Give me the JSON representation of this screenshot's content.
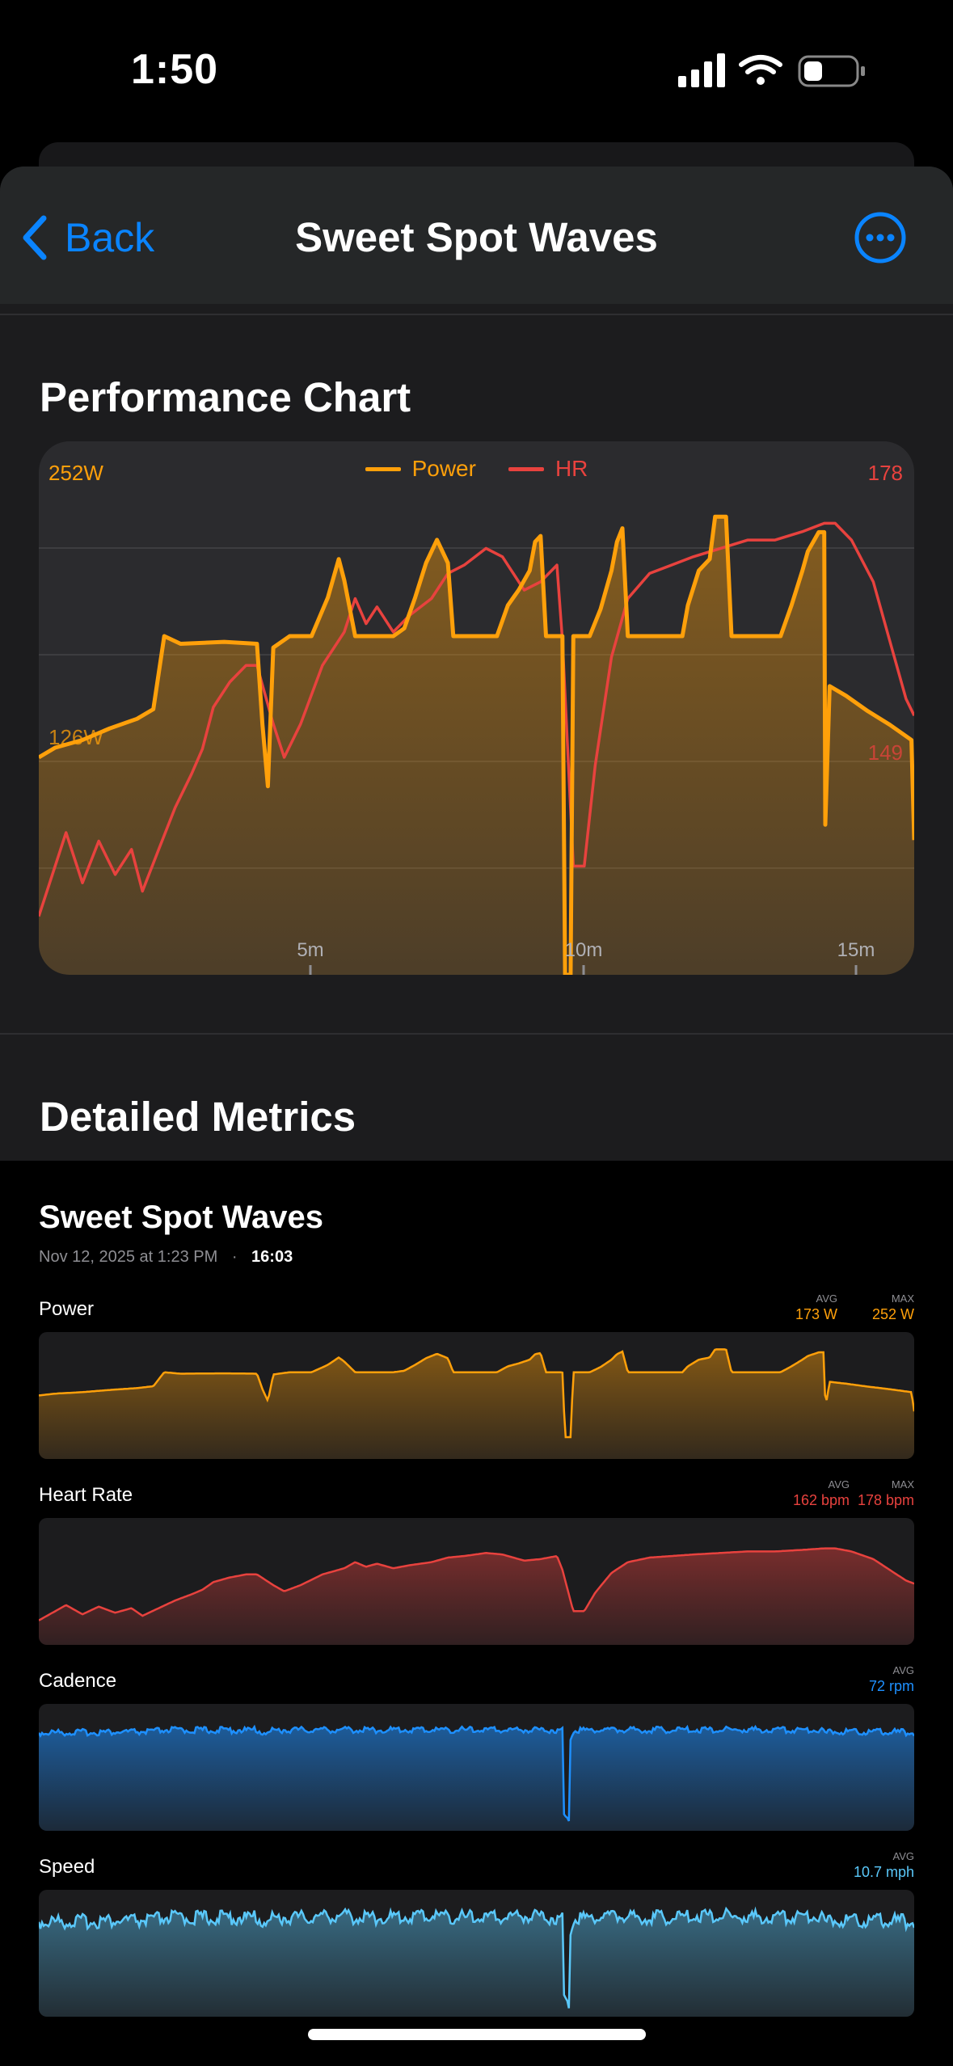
{
  "status_bar": {
    "time": "1:50"
  },
  "nav": {
    "back_label": "Back",
    "title": "Sweet Spot Waves"
  },
  "performance": {
    "section_title": "Performance Chart",
    "legend": [
      {
        "label": "Power",
        "color": "#ffa00a"
      },
      {
        "label": "HR",
        "color": "#e8423e"
      }
    ],
    "power_max_label": "252W",
    "power_mid_label": "126W",
    "hr_max_label": "178",
    "hr_mid_label": "149",
    "x_ticks": [
      "5m",
      "10m",
      "15m"
    ]
  },
  "detailed": {
    "section_title": "Detailed Metrics"
  },
  "workout": {
    "title": "Sweet Spot Waves",
    "date": "Nov 12, 2025 at 1:23 PM",
    "separator": "·",
    "duration": "16:03"
  },
  "metrics": [
    {
      "label": "Power",
      "color": "#ffa00a",
      "stats": [
        {
          "caption": "AVG",
          "value": "173 W"
        },
        {
          "caption": "MAX",
          "value": "252 W"
        }
      ]
    },
    {
      "label": "Heart Rate",
      "color": "#e8423e",
      "stats": [
        {
          "caption": "AVG",
          "value": "162 bpm"
        },
        {
          "caption": "MAX",
          "value": "178 bpm"
        }
      ]
    },
    {
      "label": "Cadence",
      "color": "#1e90ff",
      "stats": [
        {
          "caption": "AVG",
          "value": "72 rpm"
        }
      ]
    },
    {
      "label": "Speed",
      "color": "#5ac8fa",
      "stats": [
        {
          "caption": "AVG",
          "value": "10.7 mph"
        }
      ]
    }
  ],
  "chart_data": {
    "type": "line",
    "x_unit": "minutes",
    "xlim": [
      0,
      16.05
    ],
    "series": [
      {
        "name": "Power",
        "axis": "left",
        "ylim": [
          0,
          252
        ],
        "points": [
          [
            0,
            113
          ],
          [
            0.3,
            118
          ],
          [
            0.8,
            122
          ],
          [
            1.3,
            128
          ],
          [
            1.8,
            133
          ],
          [
            2.1,
            138
          ],
          [
            2.3,
            176
          ],
          [
            2.6,
            172
          ],
          [
            3.4,
            173
          ],
          [
            4.0,
            172
          ],
          [
            4.1,
            130
          ],
          [
            4.2,
            98
          ],
          [
            4.3,
            170
          ],
          [
            4.6,
            176
          ],
          [
            5.0,
            176
          ],
          [
            5.3,
            196
          ],
          [
            5.5,
            216
          ],
          [
            5.6,
            205
          ],
          [
            5.8,
            176
          ],
          [
            6.5,
            176
          ],
          [
            6.7,
            180
          ],
          [
            6.9,
            196
          ],
          [
            7.1,
            214
          ],
          [
            7.3,
            226
          ],
          [
            7.5,
            214
          ],
          [
            7.6,
            176
          ],
          [
            8.0,
            176
          ],
          [
            8.4,
            176
          ],
          [
            8.6,
            192
          ],
          [
            8.8,
            200
          ],
          [
            9.0,
            210
          ],
          [
            9.1,
            225
          ],
          [
            9.2,
            228
          ],
          [
            9.3,
            176
          ],
          [
            9.6,
            176
          ],
          [
            9.65,
            0
          ],
          [
            9.75,
            0
          ],
          [
            9.8,
            176
          ],
          [
            10.1,
            176
          ],
          [
            10.3,
            190
          ],
          [
            10.5,
            210
          ],
          [
            10.6,
            225
          ],
          [
            10.7,
            232
          ],
          [
            10.8,
            176
          ],
          [
            11.3,
            176
          ],
          [
            11.8,
            176
          ],
          [
            11.9,
            192
          ],
          [
            12.1,
            210
          ],
          [
            12.3,
            216
          ],
          [
            12.4,
            238
          ],
          [
            12.6,
            238
          ],
          [
            12.7,
            176
          ],
          [
            13.2,
            176
          ],
          [
            13.6,
            176
          ],
          [
            13.8,
            192
          ],
          [
            14.0,
            210
          ],
          [
            14.1,
            220
          ],
          [
            14.3,
            230
          ],
          [
            14.4,
            230
          ],
          [
            14.42,
            78
          ],
          [
            14.5,
            150
          ],
          [
            14.8,
            145
          ],
          [
            15.2,
            137
          ],
          [
            15.6,
            130
          ],
          [
            16.0,
            122
          ],
          [
            16.05,
            70
          ]
        ]
      },
      {
        "name": "HR",
        "axis": "right",
        "ylim": [
          120,
          178
        ],
        "points": [
          [
            0,
            127
          ],
          [
            0.2,
            131
          ],
          [
            0.5,
            137
          ],
          [
            0.8,
            131
          ],
          [
            1.1,
            136
          ],
          [
            1.4,
            132
          ],
          [
            1.7,
            135
          ],
          [
            1.9,
            130
          ],
          [
            2.2,
            135
          ],
          [
            2.5,
            140
          ],
          [
            2.8,
            144
          ],
          [
            3.0,
            147
          ],
          [
            3.2,
            152
          ],
          [
            3.5,
            155
          ],
          [
            3.8,
            157
          ],
          [
            4.0,
            157
          ],
          [
            4.3,
            150
          ],
          [
            4.5,
            146
          ],
          [
            4.8,
            150
          ],
          [
            5.2,
            157
          ],
          [
            5.6,
            161
          ],
          [
            5.8,
            165
          ],
          [
            6.0,
            162
          ],
          [
            6.2,
            164
          ],
          [
            6.5,
            161
          ],
          [
            6.8,
            163
          ],
          [
            7.2,
            165
          ],
          [
            7.5,
            168
          ],
          [
            7.8,
            169
          ],
          [
            8.2,
            171
          ],
          [
            8.5,
            170
          ],
          [
            8.9,
            166
          ],
          [
            9.2,
            167
          ],
          [
            9.5,
            169
          ],
          [
            9.6,
            160
          ],
          [
            9.8,
            133
          ],
          [
            10.0,
            133
          ],
          [
            10.2,
            145
          ],
          [
            10.5,
            158
          ],
          [
            10.8,
            165
          ],
          [
            11.2,
            168
          ],
          [
            11.6,
            169
          ],
          [
            12.0,
            170
          ],
          [
            12.5,
            171
          ],
          [
            13.0,
            172
          ],
          [
            13.5,
            172
          ],
          [
            14.0,
            173
          ],
          [
            14.4,
            174
          ],
          [
            14.6,
            174
          ],
          [
            14.9,
            172
          ],
          [
            15.3,
            167
          ],
          [
            15.6,
            160
          ],
          [
            15.9,
            153
          ],
          [
            16.05,
            151
          ]
        ]
      }
    ]
  }
}
